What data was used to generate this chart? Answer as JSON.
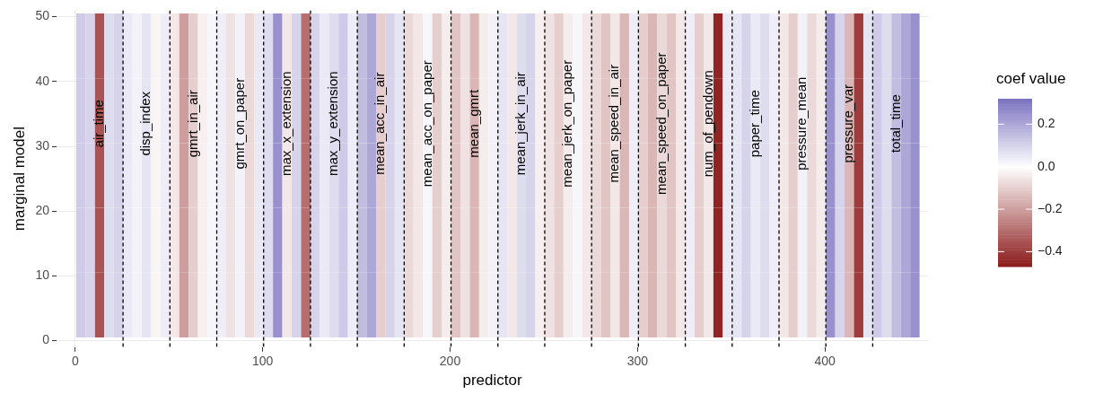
{
  "chart_data": {
    "type": "heatmap",
    "xlabel": "predictor",
    "ylabel": "marginal model",
    "clabel": "coef value",
    "xlim": [
      -10,
      455
    ],
    "xticks": [
      0,
      100,
      200,
      300,
      400
    ],
    "ylim": [
      -1,
      51
    ],
    "yticks": [
      0,
      10,
      20,
      30,
      40,
      50
    ],
    "grid": true,
    "clim": [
      -0.47,
      0.32
    ],
    "cticks": [
      {
        "value": -0.4,
        "label": "−0.4"
      },
      {
        "value": -0.2,
        "label": "−0.2"
      },
      {
        "value": 0,
        "label": "0.0"
      },
      {
        "value": 0.2,
        "label": "0.2"
      }
    ],
    "colors": [
      "#8b1a1a",
      "#ffffff",
      "#7b72c0"
    ],
    "x": [
      3,
      8,
      13,
      18,
      23,
      28,
      33,
      38,
      43,
      48,
      53,
      58,
      63,
      68,
      73,
      78,
      83,
      88,
      93,
      98,
      103,
      108,
      113,
      118,
      123,
      128,
      133,
      138,
      143,
      148,
      153,
      158,
      163,
      168,
      173,
      178,
      183,
      188,
      193,
      198,
      203,
      208,
      213,
      218,
      223,
      228,
      233,
      238,
      243,
      248,
      253,
      258,
      263,
      268,
      273,
      278,
      283,
      288,
      293,
      298,
      303,
      308,
      313,
      318,
      323,
      328,
      333,
      338,
      343,
      348,
      353,
      358,
      363,
      368,
      373,
      378,
      383,
      388,
      393,
      398,
      403,
      408,
      413,
      418,
      423,
      428,
      433,
      438,
      443,
      448
    ],
    "y": [
      5.5,
      15.5,
      25.5,
      35.5,
      45.5
    ],
    "cells": [
      [
        0.12,
        0.1,
        -0.35,
        0.08,
        0.1,
        0.05,
        0.03,
        0.06,
        -0.02,
        0.04,
        -0.05,
        -0.2,
        -0.1,
        -0.03,
        0.02,
        0.04,
        -0.06,
        0.03,
        -0.08,
        0.05,
        0.08,
        0.25,
        -0.05,
        0.1,
        -0.3,
        0.1,
        0.05,
        0.08,
        0.12,
        0.04,
        0.15,
        0.2,
        -0.1,
        0.1,
        0.06,
        -0.08,
        -0.05,
        0.02,
        -0.1,
        -0.04,
        -0.12,
        -0.06,
        -0.15,
        -0.04,
        0.03,
        0.06,
        -0.05,
        0.08,
        0.1,
        -0.03,
        -0.06,
        -0.1,
        -0.04,
        0.02,
        -0.05,
        -0.08,
        -0.12,
        -0.05,
        -0.15,
        0.04,
        -0.1,
        -0.15,
        -0.08,
        -0.12,
        -0.05,
        0.04,
        -0.1,
        -0.05,
        -0.45,
        0.05,
        0.06,
        0.1,
        0.05,
        0.08,
        0.04,
        -0.05,
        -0.1,
        0.03,
        -0.08,
        -0.04,
        0.25,
        0.1,
        -0.15,
        -0.4,
        0.06,
        0.12,
        0.08,
        0.15,
        0.2,
        0.25
      ],
      [
        0.12,
        0.1,
        -0.35,
        0.08,
        0.1,
        0.05,
        0.03,
        0.06,
        -0.02,
        0.04,
        -0.05,
        -0.2,
        -0.1,
        -0.03,
        0.02,
        0.04,
        -0.06,
        0.03,
        -0.08,
        0.05,
        0.08,
        0.25,
        -0.05,
        0.1,
        -0.3,
        0.1,
        0.05,
        0.08,
        0.12,
        0.04,
        0.15,
        0.2,
        -0.1,
        0.1,
        0.06,
        -0.08,
        -0.05,
        0.02,
        -0.1,
        -0.04,
        -0.12,
        -0.06,
        -0.15,
        -0.04,
        0.03,
        0.06,
        -0.05,
        0.08,
        0.1,
        -0.03,
        -0.06,
        -0.1,
        -0.04,
        0.02,
        -0.05,
        -0.08,
        -0.12,
        -0.05,
        -0.15,
        0.04,
        -0.1,
        -0.15,
        -0.08,
        -0.12,
        -0.05,
        0.04,
        -0.1,
        -0.05,
        -0.45,
        0.05,
        0.06,
        0.1,
        0.05,
        0.08,
        0.04,
        -0.05,
        -0.1,
        0.03,
        -0.08,
        -0.04,
        0.25,
        0.1,
        -0.15,
        -0.4,
        0.06,
        0.12,
        0.08,
        0.15,
        0.2,
        0.25
      ],
      [
        0.12,
        0.1,
        -0.35,
        0.08,
        0.1,
        0.05,
        0.03,
        0.06,
        -0.02,
        0.04,
        -0.05,
        -0.2,
        -0.1,
        -0.03,
        0.02,
        0.04,
        -0.06,
        0.03,
        -0.08,
        0.05,
        0.08,
        0.25,
        -0.05,
        0.1,
        -0.3,
        0.1,
        0.05,
        0.08,
        0.12,
        0.04,
        0.15,
        0.2,
        -0.1,
        0.1,
        0.06,
        -0.08,
        -0.05,
        0.02,
        -0.1,
        -0.04,
        -0.12,
        -0.06,
        -0.15,
        -0.04,
        0.03,
        0.06,
        -0.05,
        0.08,
        0.1,
        -0.03,
        -0.06,
        -0.1,
        -0.04,
        0.02,
        -0.05,
        -0.08,
        -0.12,
        -0.05,
        -0.15,
        0.04,
        -0.1,
        -0.15,
        -0.08,
        -0.12,
        -0.05,
        0.04,
        -0.1,
        -0.05,
        -0.45,
        0.05,
        0.06,
        0.1,
        0.05,
        0.08,
        0.04,
        -0.05,
        -0.1,
        0.03,
        -0.08,
        -0.04,
        0.25,
        0.1,
        -0.15,
        -0.4,
        0.06,
        0.12,
        0.08,
        0.15,
        0.2,
        0.25
      ],
      [
        0.12,
        0.1,
        -0.35,
        0.08,
        0.1,
        0.05,
        0.03,
        0.06,
        -0.02,
        0.04,
        -0.05,
        -0.2,
        -0.1,
        -0.03,
        0.02,
        0.04,
        -0.06,
        0.03,
        -0.08,
        0.05,
        0.08,
        0.25,
        -0.05,
        0.1,
        -0.3,
        0.1,
        0.05,
        0.08,
        0.12,
        0.04,
        0.15,
        0.2,
        -0.1,
        0.1,
        0.06,
        -0.08,
        -0.05,
        0.02,
        -0.1,
        -0.04,
        -0.12,
        -0.06,
        -0.15,
        -0.04,
        0.03,
        0.06,
        -0.05,
        0.08,
        0.1,
        -0.03,
        -0.06,
        -0.1,
        -0.04,
        0.02,
        -0.05,
        -0.08,
        -0.12,
        -0.05,
        -0.15,
        0.04,
        -0.1,
        -0.15,
        -0.08,
        -0.12,
        -0.05,
        0.04,
        -0.1,
        -0.05,
        -0.45,
        0.05,
        0.06,
        0.1,
        0.05,
        0.08,
        0.04,
        -0.05,
        -0.1,
        0.03,
        -0.08,
        -0.04,
        0.25,
        0.1,
        -0.15,
        -0.4,
        0.06,
        0.12,
        0.08,
        0.15,
        0.2,
        0.25
      ],
      [
        0.12,
        0.1,
        -0.35,
        0.08,
        0.1,
        0.05,
        0.03,
        0.06,
        -0.02,
        0.04,
        -0.05,
        -0.2,
        -0.1,
        -0.03,
        0.02,
        0.04,
        -0.06,
        0.03,
        -0.08,
        0.05,
        0.08,
        0.25,
        -0.05,
        0.1,
        -0.3,
        0.1,
        0.05,
        0.08,
        0.12,
        0.04,
        0.15,
        0.2,
        -0.1,
        0.1,
        0.06,
        -0.08,
        -0.05,
        0.02,
        -0.1,
        -0.04,
        -0.12,
        -0.06,
        -0.15,
        -0.04,
        0.03,
        0.06,
        -0.05,
        0.08,
        0.1,
        -0.03,
        -0.06,
        -0.1,
        -0.04,
        0.02,
        -0.05,
        -0.08,
        -0.12,
        -0.05,
        -0.15,
        0.04,
        -0.1,
        -0.15,
        -0.08,
        -0.12,
        -0.05,
        0.04,
        -0.1,
        -0.05,
        -0.45,
        0.05,
        0.06,
        0.1,
        0.05,
        0.08,
        0.04,
        -0.05,
        -0.1,
        0.03,
        -0.08,
        -0.04,
        0.25,
        0.1,
        -0.15,
        -0.4,
        0.06,
        0.12,
        0.08,
        0.15,
        0.2,
        0.25
      ]
    ],
    "ref_lines": [
      {
        "axis": "x",
        "value": 25.5,
        "line_style": "dashed",
        "color": "#000000"
      },
      {
        "axis": "x",
        "value": 50.5,
        "line_style": "dashed",
        "color": "#000000"
      },
      {
        "axis": "x",
        "value": 75.5,
        "line_style": "dashed",
        "color": "#000000"
      },
      {
        "axis": "x",
        "value": 100.5,
        "line_style": "dashed",
        "color": "#000000"
      },
      {
        "axis": "x",
        "value": 125.5,
        "line_style": "dashed",
        "color": "#000000"
      },
      {
        "axis": "x",
        "value": 150.5,
        "line_style": "dashed",
        "color": "#000000"
      },
      {
        "axis": "x",
        "value": 175.5,
        "line_style": "dashed",
        "color": "#000000"
      },
      {
        "axis": "x",
        "value": 200.5,
        "line_style": "dashed",
        "color": "#000000"
      },
      {
        "axis": "x",
        "value": 225.5,
        "line_style": "dashed",
        "color": "#000000"
      },
      {
        "axis": "x",
        "value": 250.5,
        "line_style": "dashed",
        "color": "#000000"
      },
      {
        "axis": "x",
        "value": 275.5,
        "line_style": "dashed",
        "color": "#000000"
      },
      {
        "axis": "x",
        "value": 300.5,
        "line_style": "dashed",
        "color": "#000000"
      },
      {
        "axis": "x",
        "value": 325.5,
        "line_style": "dashed",
        "color": "#000000"
      },
      {
        "axis": "x",
        "value": 350.5,
        "line_style": "dashed",
        "color": "#000000"
      },
      {
        "axis": "x",
        "value": 375.5,
        "line_style": "dashed",
        "color": "#000000"
      },
      {
        "axis": "x",
        "value": 400.5,
        "line_style": "dashed",
        "color": "#000000"
      },
      {
        "axis": "x",
        "value": 425.5,
        "line_style": "dashed",
        "color": "#000000"
      }
    ],
    "annotations": [
      "air_time",
      "disp_index",
      "gmrt_in_air",
      "gmrt_on_paper",
      "max_x_extension",
      "max_y_extension",
      "mean_acc_in_air",
      "mean_acc_on_paper",
      "mean_gmrt",
      "mean_jerk_in_air",
      "mean_jerk_on_paper",
      "mean_speed_in_air",
      "mean_speed_on_paper",
      "num_of_pendown",
      "paper_time",
      "pressure_mean",
      "pressure_var",
      "total_time"
    ]
  }
}
